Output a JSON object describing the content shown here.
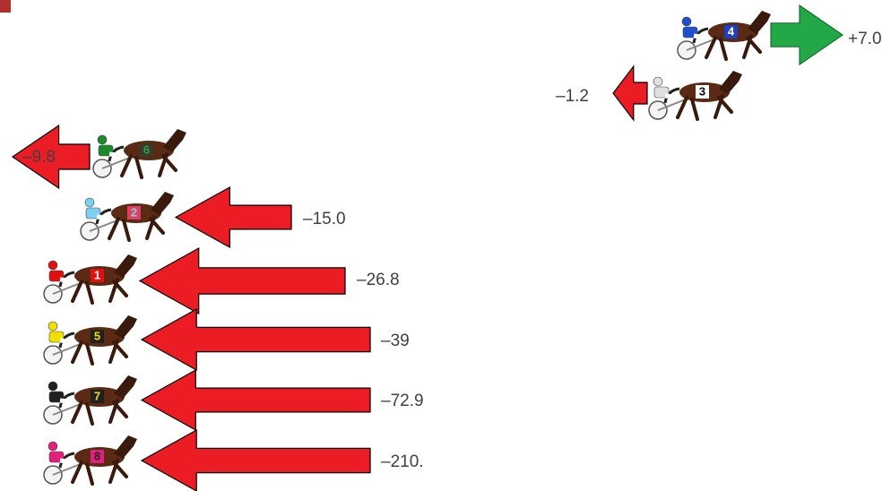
{
  "rows": [
    {
      "number": "4",
      "change": "+7.0"
    },
    {
      "number": "3",
      "change": "–1.2"
    },
    {
      "number": "6",
      "change": "–9.8"
    },
    {
      "number": "2",
      "change": "–15.0"
    },
    {
      "number": "1",
      "change": "–26.8"
    },
    {
      "number": "5",
      "change": "–39"
    },
    {
      "number": "7",
      "change": "–72.9"
    },
    {
      "number": "8",
      "change": "–210."
    }
  ]
}
